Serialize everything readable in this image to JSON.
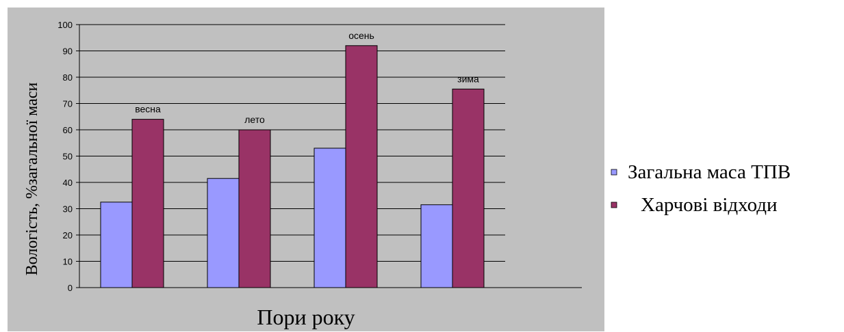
{
  "chart_data": {
    "type": "bar",
    "title": "",
    "xlabel": "Пори року",
    "ylabel": "Вологість, %загальної маси",
    "categories": [
      "весна",
      "лето",
      "осень",
      "зима"
    ],
    "series": [
      {
        "name": "Загальна маса ТПВ",
        "values": [
          32.5,
          41.5,
          53,
          31.5
        ]
      },
      {
        "name": "Харчові відходи",
        "values": [
          64,
          60,
          92,
          75.5
        ]
      }
    ],
    "ylim": [
      0,
      100
    ],
    "yticks": [
      "0",
      "10",
      "20",
      "30",
      "40",
      "50",
      "60",
      "70",
      "80",
      "90",
      "100"
    ],
    "grid": true,
    "legend_position": "right",
    "colors": {
      "plot_background": "#c0c0c0",
      "series": [
        "#9999ff",
        "#993366"
      ],
      "gridline": "#000000",
      "bar_border": "#000000"
    }
  }
}
